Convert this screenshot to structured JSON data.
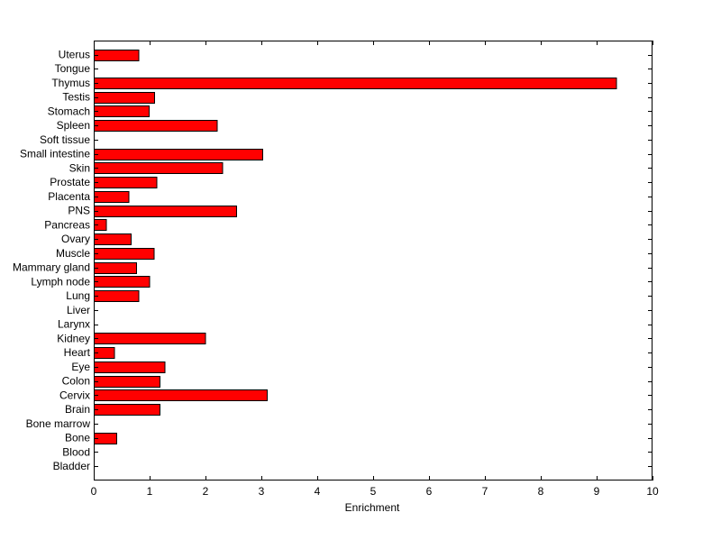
{
  "chart_data": {
    "type": "bar",
    "orientation": "horizontal",
    "title": "",
    "xlabel": "Enrichment",
    "ylabel": "",
    "xlim": [
      0,
      10
    ],
    "xticks": [
      0,
      1,
      2,
      3,
      4,
      5,
      6,
      7,
      8,
      9,
      10
    ],
    "grid": false,
    "bar_color": "#ff0000",
    "edge_color": "#000000",
    "categories": [
      "Uterus",
      "Tongue",
      "Thymus",
      "Testis",
      "Stomach",
      "Spleen",
      "Soft tissue",
      "Small intestine",
      "Skin",
      "Prostate",
      "Placenta",
      "PNS",
      "Pancreas",
      "Ovary",
      "Muscle",
      "Mammary gland",
      "Lymph node",
      "Lung",
      "Liver",
      "Larynx",
      "Kidney",
      "Heart",
      "Eye",
      "Colon",
      "Cervix",
      "Brain",
      "Bone marrow",
      "Bone",
      "Blood",
      "Bladder"
    ],
    "values": [
      0.8,
      0,
      9.35,
      1.08,
      0.98,
      2.2,
      0,
      3.02,
      2.3,
      1.12,
      0.62,
      2.55,
      0.22,
      0.66,
      1.07,
      0.76,
      0.99,
      0.8,
      0,
      0,
      1.99,
      0.36,
      1.27,
      1.18,
      3.1,
      1.18,
      0,
      0.4,
      0,
      0
    ]
  }
}
